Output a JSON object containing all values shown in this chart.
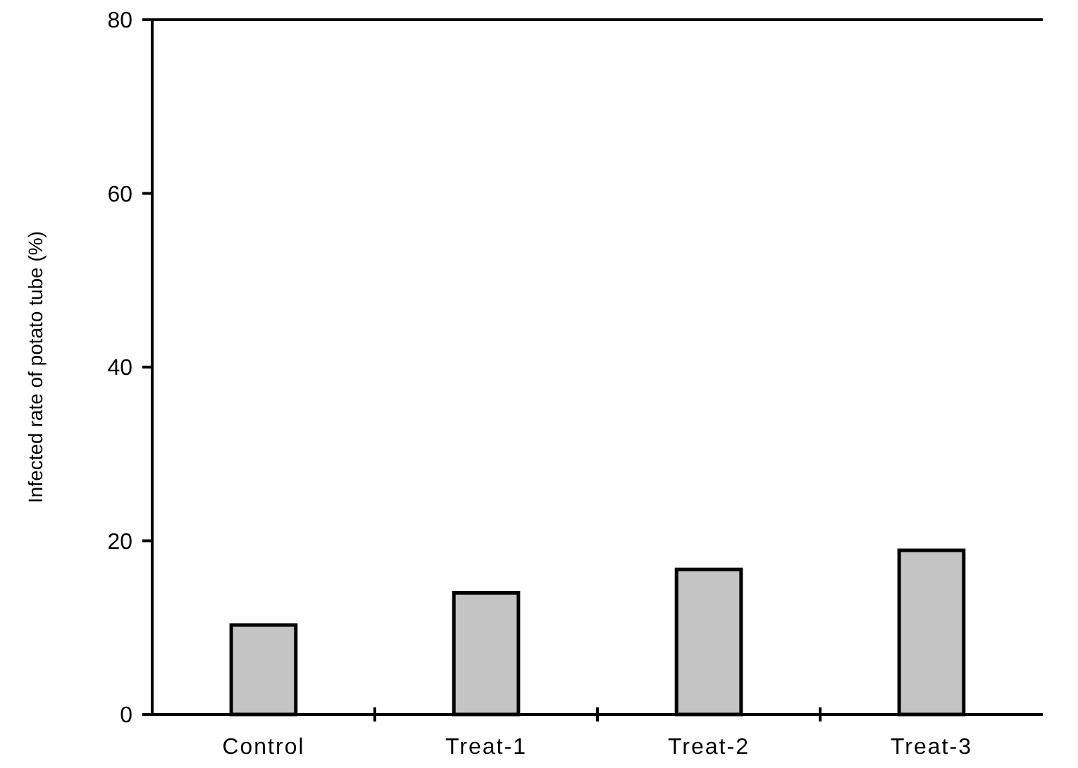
{
  "chart_data": {
    "type": "bar",
    "ylabel": "Infected rate of potato tube  (%)",
    "categories": [
      "Control",
      "Treat-1",
      "Treat-2",
      "Treat-3"
    ],
    "values": [
      10.3,
      14,
      16.7,
      18.9
    ],
    "color": "#c4c4c4",
    "ylim": [
      0,
      80
    ],
    "yticks": [
      0,
      20,
      40,
      60,
      80
    ],
    "grid": false
  }
}
